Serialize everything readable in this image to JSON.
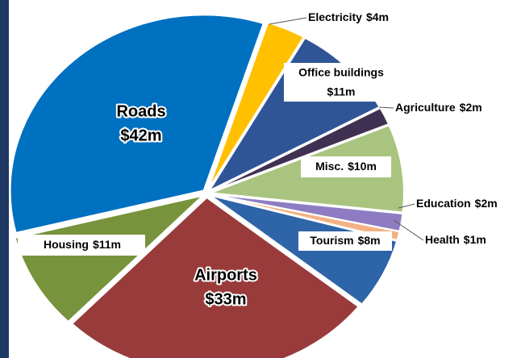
{
  "chart_data": {
    "type": "pie",
    "categories": [
      "Electricity",
      "Office buildings",
      "Agriculture",
      "Misc.",
      "Education",
      "Health",
      "Tourism",
      "Airports",
      "Housing",
      "Roads"
    ],
    "values": [
      4,
      11,
      2,
      10,
      2,
      1,
      8,
      33,
      11,
      42
    ],
    "value_labels": [
      "$4m",
      "$11m",
      "$2m",
      "$10m",
      "$2m",
      "$1m",
      "$8m",
      "$33m",
      "$11m",
      "$42m"
    ],
    "colors": [
      "#ffc000",
      "#2f5597",
      "#403152",
      "#a9c47f",
      "#8e7cc3",
      "#f4b183",
      "#2e64a8",
      "#993b3b",
      "#77933c",
      "#0070c0"
    ]
  }
}
